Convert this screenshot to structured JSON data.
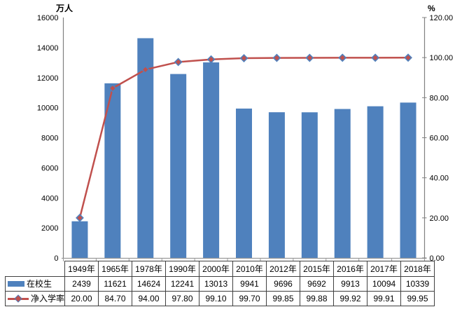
{
  "chart_data": {
    "type": "bar",
    "subtype": "combo-bar-line",
    "title": "",
    "categories": [
      "1949年",
      "1965年",
      "1978年",
      "1990年",
      "2000年",
      "2010年",
      "2012年",
      "2015年",
      "2016年",
      "2017年",
      "2018年"
    ],
    "series": [
      {
        "name": "在校生",
        "type": "bar",
        "axis": "left",
        "color": "#4F81BD",
        "values": [
          2439,
          11621,
          14624,
          12241,
          13013,
          9941,
          9696,
          9692,
          9913,
          10094,
          10339
        ],
        "display_values": [
          "2439",
          "11621",
          "14624",
          "12241",
          "13013",
          "9941",
          "9696",
          "9692",
          "9913",
          "10094",
          "10339"
        ]
      },
      {
        "name": "净入学率",
        "type": "line",
        "axis": "right",
        "color": "#C0504D",
        "marker": "diamond",
        "marker_fill": "#C0504D",
        "marker_border": "#4F81BD",
        "values": [
          20.0,
          84.7,
          94.0,
          97.8,
          99.1,
          99.7,
          99.85,
          99.88,
          99.92,
          99.91,
          99.95
        ],
        "display_values": [
          "20.00",
          "84.70",
          "94.00",
          "97.80",
          "99.10",
          "99.70",
          "99.85",
          "99.88",
          "99.92",
          "99.91",
          "99.95"
        ]
      }
    ],
    "left_axis": {
      "title": "万人",
      "min": 0,
      "max": 16000,
      "step": 2000,
      "tick_labels": [
        "16000",
        "14000",
        "12000",
        "10000",
        "8000",
        "6000",
        "4000",
        "2000",
        "0"
      ]
    },
    "right_axis": {
      "title": "%",
      "min": 0,
      "max": 120,
      "step": 20,
      "tick_labels": [
        "120.00",
        "100.00",
        "80.00",
        "60.00",
        "40.00",
        "20.00",
        "0.00"
      ]
    },
    "grid": false,
    "legend_position": "data-table",
    "data_table": true,
    "colors": {
      "bar": "#4F81BD",
      "line": "#C0504D",
      "axis_line": "#808080",
      "table_border": "#404040"
    }
  }
}
